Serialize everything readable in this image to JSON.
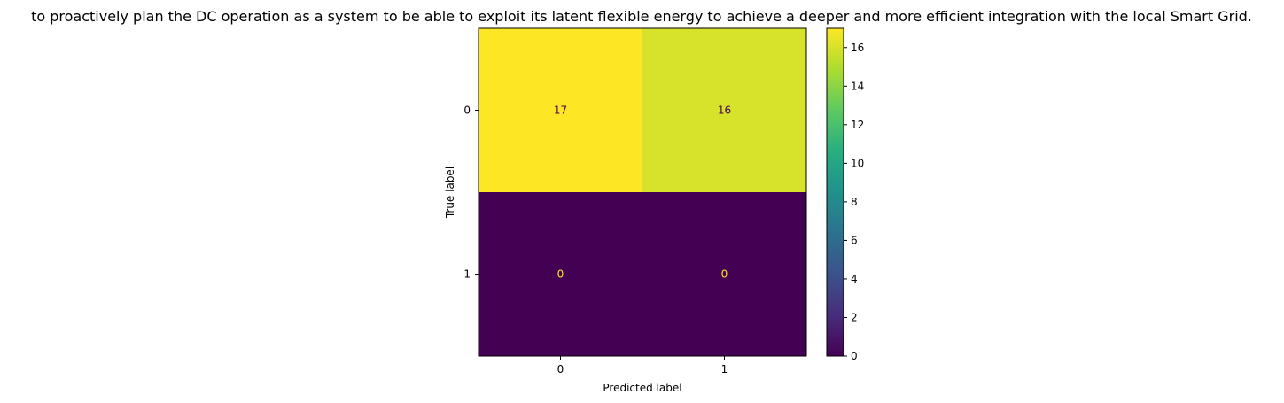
{
  "chart_data": {
    "type": "heatmap",
    "title": "to proactively plan the DC operation as a system to be able to exploit its latent flexible energy to achieve a deeper and more efficient integration with the local Smart Grid.",
    "xlabel": "Predicted label",
    "ylabel": "True label",
    "x_categories": [
      "0",
      "1"
    ],
    "y_categories": [
      "0",
      "1"
    ],
    "values": [
      [
        17,
        16
      ],
      [
        0,
        0
      ]
    ],
    "colormap": "viridis",
    "colorbar": {
      "range": [
        0,
        17
      ],
      "ticks": [
        0,
        2,
        4,
        6,
        8,
        10,
        12,
        14,
        16
      ],
      "tick_labels": [
        "0",
        "2",
        "4",
        "6",
        "8",
        "10",
        "12",
        "14",
        "16"
      ]
    },
    "grid": false
  }
}
